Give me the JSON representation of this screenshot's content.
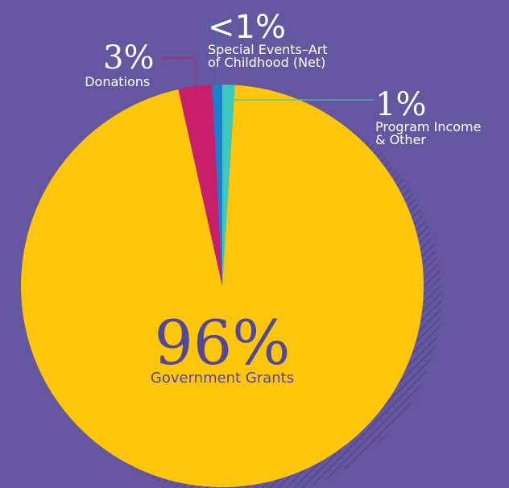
{
  "chart_data": {
    "type": "pie",
    "slices": [
      {
        "key": "government",
        "label": "Government Grants",
        "value_label": "96%",
        "value": 95.5,
        "color": "#fdc60a"
      },
      {
        "key": "donations",
        "label": "Donations",
        "value_label": "3%",
        "value": 2.7,
        "color": "#c91f6a"
      },
      {
        "key": "special",
        "label": "Special Events–Art of Childhood (Net)",
        "value_label": "<1%",
        "value": 0.8,
        "color": "#1b7fd0"
      },
      {
        "key": "program",
        "label": "Program Income & Other",
        "value_label": "1%",
        "value": 1.0,
        "color": "#3ec8bf"
      }
    ]
  },
  "labels": {
    "donations": {
      "pct": "3%",
      "caption": "Donations"
    },
    "special": {
      "pct": "<1%",
      "caption_line1": "Special Events–Art",
      "caption_line2": "of Childhood (Net)"
    },
    "program": {
      "pct": "1%",
      "caption_line1": "Program Income",
      "caption_line2": "& Other"
    },
    "government": {
      "pct": "96%",
      "caption": "Government Grants"
    }
  }
}
